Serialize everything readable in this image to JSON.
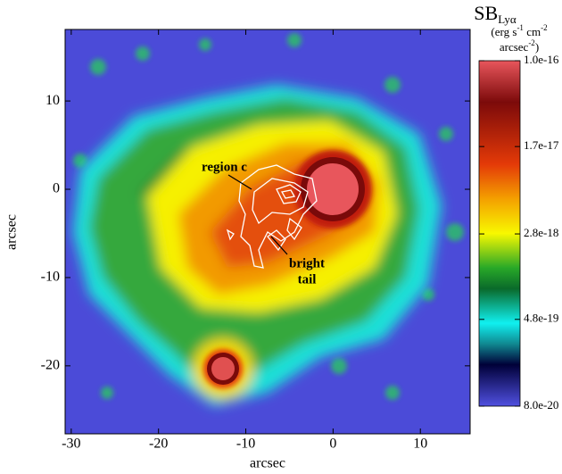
{
  "chart_data": {
    "type": "image",
    "xlabel": "arcsec",
    "ylabel": "arcsec",
    "xlim": [
      -30.7,
      15.7
    ],
    "ylim": [
      -27.7,
      18.1
    ],
    "xticks": [
      -30,
      -20,
      -10,
      0,
      10
    ],
    "yticks": [
      10,
      0,
      -10,
      -20
    ],
    "colorbar": {
      "title": "SB",
      "title_sub": "Lyα",
      "unit_line1": [
        "(erg s",
        "-1",
        " cm",
        "-2"
      ],
      "unit_line2": [
        "arcsec",
        "-2",
        ")"
      ],
      "scale": "log",
      "clim": [
        8e-20,
        1e-16
      ],
      "ticks": [
        {
          "value": 1e-16,
          "label": "1.0e-16"
        },
        {
          "value": 1.7e-17,
          "label": "1.7e-17"
        },
        {
          "value": 2.8e-18,
          "label": "2.8e-18"
        },
        {
          "value": 4.8e-19,
          "label": "4.8e-19"
        },
        {
          "value": 8e-20,
          "label": "8.0e-20"
        }
      ]
    },
    "annotations": [
      "region c",
      "bright",
      "tail"
    ]
  }
}
